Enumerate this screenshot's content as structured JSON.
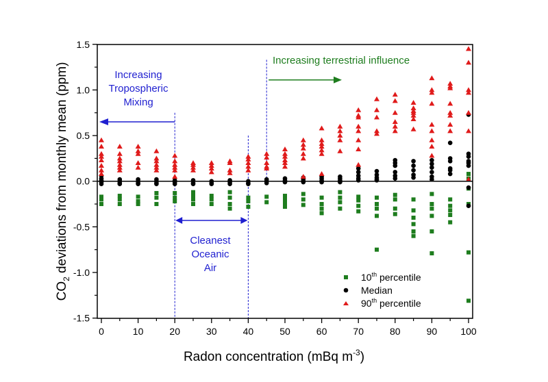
{
  "chart_data": {
    "type": "scatter",
    "xlabel": {
      "main": "Radon concentration (mBq m",
      "sup": "-3",
      "end": ")"
    },
    "ylabel": {
      "pre": "CO",
      "sub": "2",
      "post": " deviations from monthly mean (ppm)"
    },
    "xlim": [
      -2,
      101
    ],
    "ylim": [
      -1.5,
      1.5
    ],
    "xticks": [
      0,
      10,
      20,
      30,
      40,
      50,
      60,
      70,
      80,
      90,
      100
    ],
    "xtick_labels": [
      "0",
      "10",
      "20",
      "30",
      "40",
      "50",
      "60",
      "70",
      "80",
      "90",
      "100"
    ],
    "yticks": [
      -1.5,
      -1.0,
      -0.5,
      0.0,
      0.5,
      1.0,
      1.5
    ],
    "ytick_labels": [
      "-1.5",
      "-1.0",
      "-0.5",
      "0.0",
      "0.5",
      "1.0",
      "1.5"
    ],
    "grid": false,
    "legend_position": "bottom-right",
    "series": [
      {
        "name": "10th percentile",
        "name_parts": [
          "10",
          "th",
          " percentile"
        ],
        "marker": "square",
        "color": "#1e7d1e",
        "points": {
          "0": [
            -0.17,
            -0.2,
            -0.25
          ],
          "5": [
            -0.16,
            -0.2,
            -0.25
          ],
          "10": [
            -0.17,
            -0.22,
            -0.25
          ],
          "15": [
            -0.13,
            -0.18,
            -0.25
          ],
          "20": [
            -0.13,
            -0.18,
            -0.22
          ],
          "25": [
            -0.12,
            -0.16,
            -0.2,
            -0.25
          ],
          "30": [
            -0.16,
            -0.2,
            -0.25
          ],
          "35": [
            -0.12,
            -0.18,
            -0.25,
            -0.3
          ],
          "40": [
            -0.18,
            -0.22,
            -0.28
          ],
          "45": [
            -0.17,
            -0.23
          ],
          "50": [
            -0.16,
            -0.2,
            -0.24,
            -0.28
          ],
          "55": [
            -0.14,
            -0.2,
            -0.26
          ],
          "60": [
            -0.18,
            -0.25,
            -0.3,
            -0.35
          ],
          "65": [
            -0.12,
            -0.18,
            -0.23,
            -0.3
          ],
          "70": [
            -0.17,
            -0.21,
            -0.27,
            -0.33
          ],
          "75": [
            -0.18,
            -0.25,
            -0.3,
            -0.38,
            -0.75
          ],
          "80": [
            -0.15,
            -0.2,
            -0.3,
            -0.36
          ],
          "85": [
            -0.2,
            -0.32,
            -0.4,
            -0.47,
            -0.55,
            -0.6
          ],
          "90": [
            -0.14,
            -0.25,
            -0.3,
            -0.38,
            -0.55,
            -0.79
          ],
          "95": [
            -0.2,
            -0.27,
            -0.32,
            -0.37,
            -0.45
          ],
          "100": [
            0.08,
            0.03,
            -0.08,
            -0.25,
            -0.78,
            -1.31
          ]
        }
      },
      {
        "name": "Median",
        "name_parts": [
          "Median",
          "",
          ""
        ],
        "marker": "circle",
        "color": "#000000",
        "points": {
          "0": [
            0.06,
            0.03,
            0.01,
            0,
            -0.01,
            -0.03
          ],
          "5": [
            0.02,
            0,
            -0.02,
            -0.03
          ],
          "10": [
            0.02,
            0,
            -0.02,
            -0.03
          ],
          "15": [
            0.02,
            0,
            -0.02,
            -0.03
          ],
          "20": [
            0.01,
            -0.01,
            -0.03
          ],
          "25": [
            0.01,
            -0.02,
            -0.03
          ],
          "30": [
            0,
            -0.02,
            -0.03
          ],
          "35": [
            0.01,
            -0.01,
            -0.03
          ],
          "40": [
            0,
            -0.02,
            -0.03
          ],
          "45": [
            0.02,
            0,
            -0.02
          ],
          "50": [
            0.03,
            0.01,
            -0.01
          ],
          "55": [
            0.04,
            0.02,
            0,
            -0.01
          ],
          "60": [
            0.05,
            0.03,
            0.01,
            -0.01
          ],
          "65": [
            0.05,
            0.03,
            0.01,
            -0.01
          ],
          "70": [
            0.14,
            0.1,
            0.06,
            0.03,
            0.01
          ],
          "75": [
            0.11,
            0.07,
            0.04,
            0.02,
            0.01
          ],
          "80": [
            0.23,
            0.2,
            0.17,
            0.1,
            0.06,
            0.03
          ],
          "85": [
            0.22,
            0.17,
            0.12,
            0.07,
            0.04
          ],
          "90": [
            0.23,
            0.19,
            0.15,
            0.1,
            0.05,
            0.02
          ],
          "95": [
            0.42,
            0.25,
            0.22,
            0.14,
            0.12,
            0.08
          ],
          "100": [
            0.73,
            0.3,
            0.27,
            0.22,
            0.2,
            0.17,
            -0.07,
            -0.27
          ]
        }
      },
      {
        "name": "90th percentile",
        "name_parts": [
          "90",
          "th",
          " percentile"
        ],
        "marker": "triangle",
        "color": "#e01b1b",
        "points": {
          "0": [
            0.45,
            0.38,
            0.3,
            0.27,
            0.23,
            0.17,
            0.12,
            0.08
          ],
          "5": [
            0.38,
            0.3,
            0.25,
            0.22,
            0.18,
            0.15,
            0.12
          ],
          "10": [
            0.38,
            0.33,
            0.3,
            0.2,
            0.15
          ],
          "15": [
            0.33,
            0.25,
            0.22,
            0.18,
            0.15,
            0.12
          ],
          "20": [
            0.28,
            0.22,
            0.18,
            0.15,
            0.12,
            0.05
          ],
          "25": [
            0.2,
            0.18,
            0.15,
            0.12
          ],
          "30": [
            0.2,
            0.17,
            0.14,
            0.1
          ],
          "35": [
            0.22,
            0.2,
            0.12,
            0.09
          ],
          "40": [
            0.27,
            0.24,
            0.2,
            0.16,
            0.12
          ],
          "45": [
            0.3,
            0.26,
            0.2,
            0.16,
            0.14
          ],
          "50": [
            0.35,
            0.3,
            0.27,
            0.23,
            0.2,
            0.16
          ],
          "55": [
            0.45,
            0.4,
            0.36,
            0.3,
            0.25,
            0.05
          ],
          "60": [
            0.58,
            0.45,
            0.41,
            0.38,
            0.34,
            0.3,
            0.08
          ],
          "65": [
            0.6,
            0.55,
            0.5,
            0.45,
            0.33
          ],
          "70": [
            0.78,
            0.72,
            0.7,
            0.6,
            0.55,
            0.45,
            0.35,
            0.18
          ],
          "75": [
            0.9,
            0.78,
            0.7,
            0.55,
            0.52
          ],
          "80": [
            0.95,
            0.88,
            0.75,
            0.65,
            0.6,
            0.55
          ],
          "85": [
            0.86,
            0.8,
            0.77,
            0.75,
            0.72,
            0.68,
            0.57
          ],
          "90": [
            1.13,
            1.0,
            0.97,
            0.85,
            0.62,
            0.55,
            0.45,
            0.38,
            0.28
          ],
          "95": [
            1.07,
            1.04,
            1.02,
            0.85,
            0.75,
            0.72,
            0.62,
            0.55
          ],
          "100": [
            1.45,
            1.3,
            1.0,
            0.97,
            0.75,
            0.55,
            0.02
          ]
        }
      }
    ],
    "annotations": {
      "mixing": {
        "lines": [
          "Increasing",
          "Tropospheric",
          "Mixing"
        ],
        "color": "#1f1fd0"
      },
      "cleanest": {
        "lines": [
          "Cleanest",
          "Oceanic",
          "Air"
        ],
        "color": "#1f1fd0"
      },
      "terrestrial": {
        "text": "Increasing terrestrial influence",
        "color": "#1e7d1e"
      }
    }
  }
}
